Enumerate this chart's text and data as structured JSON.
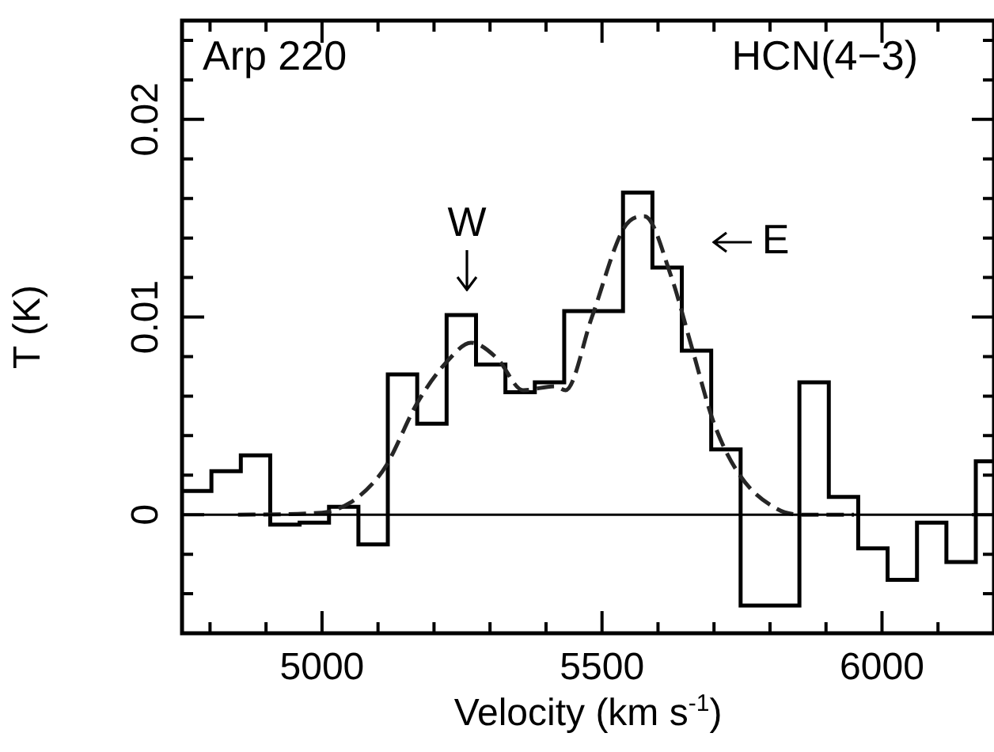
{
  "chart_data": {
    "type": "histogram",
    "xlabel": "Velocity (km s$^{-1}$)",
    "ylabel": "T (K)",
    "bins": [
      4750,
      4802.5,
      4855,
      4907.5,
      4960,
      5012.5,
      5065,
      5117.5,
      5170,
      5222.5,
      5275,
      5327.5,
      5380,
      5432.5,
      5485,
      5537.5,
      5590,
      5642.5,
      5695,
      5747.5,
      5800,
      5852.5,
      5905,
      5957.5,
      6010,
      6062.5,
      6115,
      6167.5,
      6200
    ],
    "values": [
      0.0012,
      0.0022,
      0.003,
      -0.0005,
      -0.0004,
      0.0004,
      -0.0015,
      0.0071,
      0.0046,
      0.0101,
      0.0076,
      0.0062,
      0.0067,
      0.0103,
      0.0103,
      0.0163,
      0.0125,
      0.0083,
      0.0033,
      -0.0046,
      -0.0046,
      0.0067,
      0.0009,
      -0.0017,
      -0.0033,
      -0.0004,
      -0.0024,
      0.0027
    ],
    "color": "#000000",
    "series": [
      {
        "type": "line",
        "color": "#262626",
        "line_style": "dashed",
        "x": [
          4850,
          5000,
          5050,
          5091,
          5115,
          5171,
          5228,
          5266,
          5313,
          5359,
          5416,
          5435,
          5482,
          5539,
          5576,
          5623,
          5661,
          5699,
          5746,
          5812,
          5859,
          5950
        ],
        "values": [
          0,
          0.0001,
          0.0006,
          0.0016,
          0.0025,
          0.0057,
          0.0079,
          0.0087,
          0.0079,
          0.0063,
          0.0065,
          0.0063,
          0.01,
          0.0145,
          0.0151,
          0.0121,
          0.0084,
          0.0047,
          0.002,
          0.0003,
          0,
          0
        ]
      }
    ],
    "xlim": [
      4750,
      6200
    ],
    "xticks": [
      {
        "value": 4800,
        "label": null
      },
      {
        "value": 4900,
        "label": null
      },
      5000,
      {
        "value": 5100,
        "label": null
      },
      {
        "value": 5200,
        "label": null
      },
      {
        "value": 5300,
        "label": null
      },
      {
        "value": 5400,
        "label": null
      },
      5500,
      {
        "value": 5600,
        "label": null
      },
      {
        "value": 5700,
        "label": null
      },
      {
        "value": 5800,
        "label": null
      },
      {
        "value": 5900,
        "label": null
      },
      6000,
      {
        "value": 6100,
        "label": null
      }
    ],
    "ylim": [
      -0.006,
      0.025
    ],
    "yticks": [
      {
        "value": -0.004,
        "label": null
      },
      {
        "value": -0.002,
        "label": null
      },
      0,
      {
        "value": 0.002,
        "label": null
      },
      {
        "value": 0.004,
        "label": null
      },
      {
        "value": 0.006,
        "label": null
      },
      {
        "value": 0.008,
        "label": null
      },
      0.01,
      {
        "value": 0.012,
        "label": null
      },
      {
        "value": 0.014,
        "label": null
      },
      {
        "value": 0.016,
        "label": null
      },
      {
        "value": 0.018,
        "label": null
      },
      0.02,
      {
        "value": 0.022,
        "label": null
      },
      {
        "value": 0.024,
        "label": null
      }
    ],
    "ref_lines": [
      {
        "axis": "y",
        "value": 0,
        "color": "#000000"
      }
    ],
    "annotations": [
      "Arp 220",
      "HCN(4−3)",
      "W",
      "E"
    ],
    "grid": false,
    "legend": false,
    "marker": "none"
  }
}
